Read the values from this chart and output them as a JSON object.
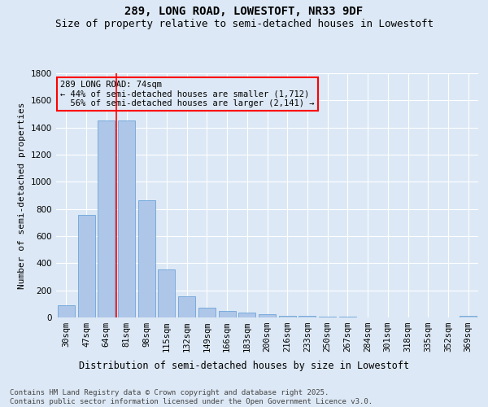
{
  "title1": "289, LONG ROAD, LOWESTOFT, NR33 9DF",
  "title2": "Size of property relative to semi-detached houses in Lowestoft",
  "xlabel": "Distribution of semi-detached houses by size in Lowestoft",
  "ylabel": "Number of semi-detached properties",
  "categories": [
    "30sqm",
    "47sqm",
    "64sqm",
    "81sqm",
    "98sqm",
    "115sqm",
    "132sqm",
    "149sqm",
    "166sqm",
    "183sqm",
    "200sqm",
    "216sqm",
    "233sqm",
    "250sqm",
    "267sqm",
    "284sqm",
    "301sqm",
    "318sqm",
    "335sqm",
    "352sqm",
    "369sqm"
  ],
  "values": [
    90,
    755,
    1450,
    1450,
    865,
    355,
    155,
    75,
    50,
    35,
    25,
    15,
    10,
    5,
    5,
    2,
    2,
    2,
    2,
    2,
    15
  ],
  "bar_color": "#aec6e8",
  "bar_edgecolor": "#5b9bd5",
  "vline_color": "red",
  "vline_x": 2.5,
  "annotation_text": "289 LONG ROAD: 74sqm\n← 44% of semi-detached houses are smaller (1,712)\n  56% of semi-detached houses are larger (2,141) →",
  "annotation_box_color": "red",
  "ylim": [
    0,
    1800
  ],
  "yticks": [
    0,
    200,
    400,
    600,
    800,
    1000,
    1200,
    1400,
    1600,
    1800
  ],
  "bg_color": "#dce8f5",
  "footnote": "Contains HM Land Registry data © Crown copyright and database right 2025.\nContains public sector information licensed under the Open Government Licence v3.0.",
  "title1_fontsize": 10,
  "title2_fontsize": 9,
  "xlabel_fontsize": 8.5,
  "ylabel_fontsize": 8,
  "tick_fontsize": 7.5,
  "annot_fontsize": 7.5,
  "footnote_fontsize": 6.5
}
